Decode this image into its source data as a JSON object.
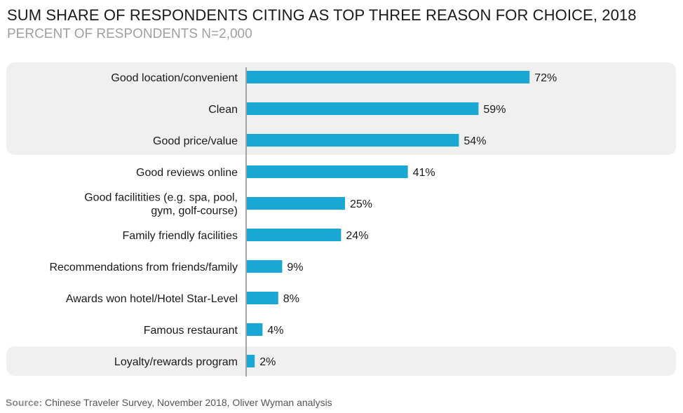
{
  "chart_data": {
    "type": "bar",
    "orientation": "horizontal",
    "title": "SUM SHARE OF RESPONDENTS CITING AS TOP THREE REASON FOR CHOICE, 2018",
    "subtitle": "PERCENT OF RESPONDENTS N=2,000",
    "categories": [
      [
        "Good location/convenient"
      ],
      [
        "Clean"
      ],
      [
        "Good price/value"
      ],
      [
        "Good reviews online"
      ],
      [
        "Good facilitities (e.g. spa, pool,",
        "gym, golf-course)"
      ],
      [
        "Family friendly facilities"
      ],
      [
        "Recommendations from friends/family"
      ],
      [
        "Awards won hotel/Hotel Star-Level"
      ],
      [
        "Famous restaurant"
      ],
      [
        "Loyalty/rewards program"
      ]
    ],
    "values": [
      72,
      59,
      54,
      41,
      25,
      24,
      9,
      8,
      4,
      2
    ],
    "value_labels": [
      "72%",
      "59%",
      "54%",
      "41%",
      "25%",
      "24%",
      "9%",
      "8%",
      "4%",
      "2%"
    ],
    "xlim": [
      0,
      100
    ],
    "bar_color": "#1aa7d3",
    "highlight_color": "#f0f0f0",
    "highlight_groups": [
      [
        0,
        2
      ],
      [
        9,
        9
      ]
    ],
    "grid": false,
    "legend": "none",
    "source_prefix": "Source:",
    "source_text": " Chinese Traveler Survey, November 2018, Oliver Wyman analysis"
  }
}
